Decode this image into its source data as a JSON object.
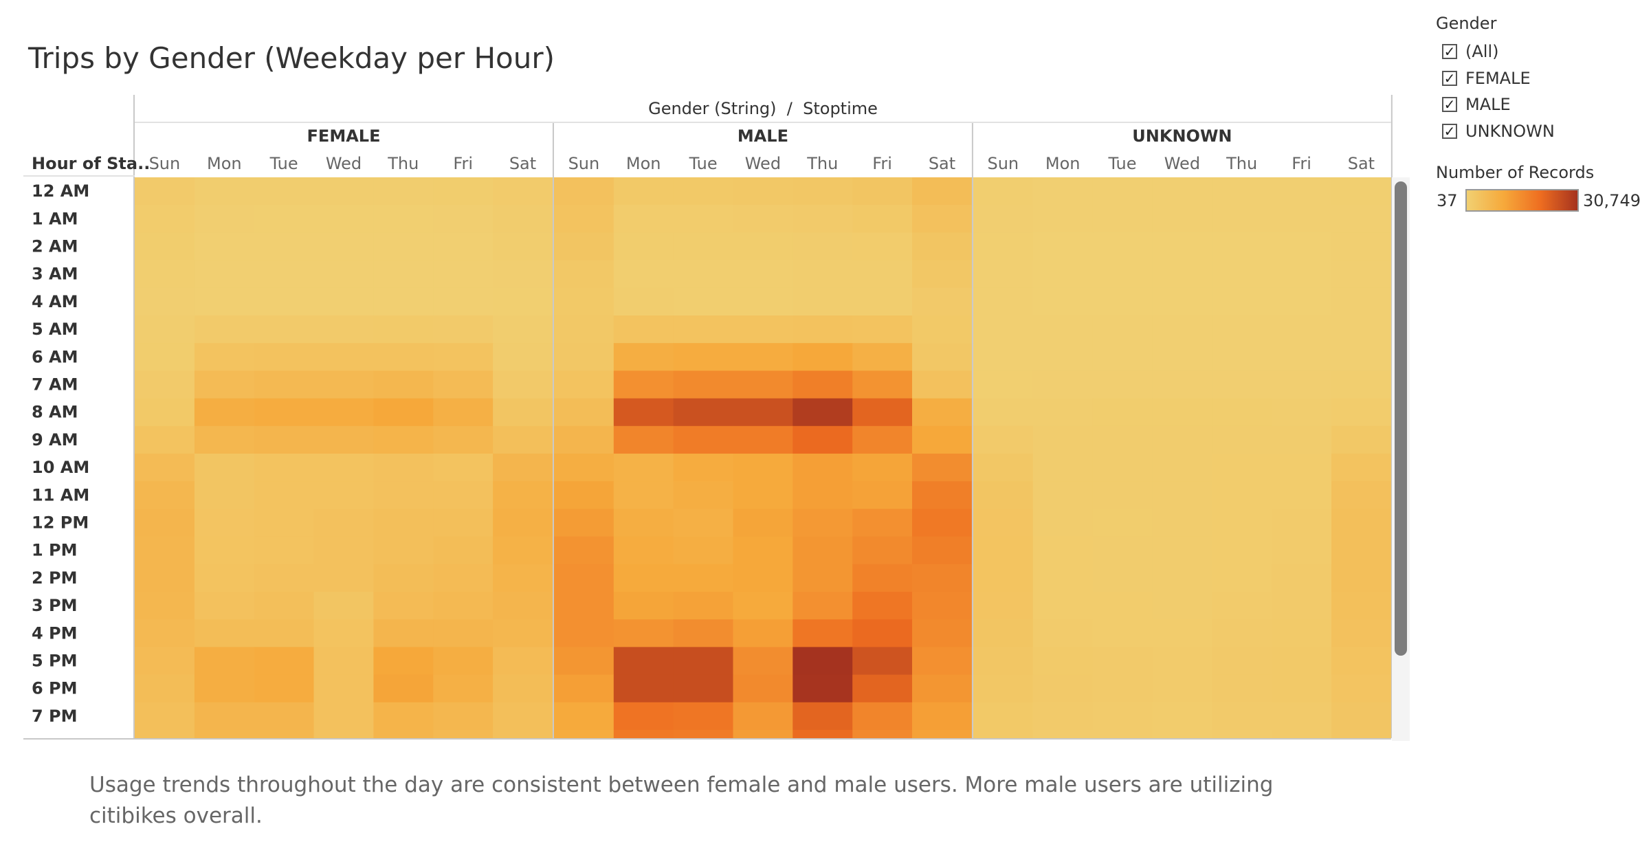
{
  "title": "Trips by Gender (Weekday per Hour)",
  "caption": "Usage trends throughout the day are consistent between female and male users. More male users are utilizing citibikes overall.",
  "legend": {
    "filter_title": "Gender",
    "filter_items": [
      "(All)",
      "FEMALE",
      "MALE",
      "UNKNOWN"
    ],
    "color_title": "Number of Records",
    "color_min": "37",
    "color_max": "30,749",
    "ramp_colors": [
      "#f1d072",
      "#f6a93b",
      "#ee6d20",
      "#a5331f"
    ]
  },
  "chart_data": {
    "type": "heatmap",
    "column_header_title": "Gender (String)  /  Stoptime",
    "row_header_title": "Hour of Sta..",
    "groups": [
      "FEMALE",
      "MALE",
      "UNKNOWN"
    ],
    "days": [
      "Sun",
      "Mon",
      "Tue",
      "Wed",
      "Thu",
      "Fri",
      "Sat"
    ],
    "hours": [
      "12 AM",
      "1 AM",
      "2 AM",
      "3 AM",
      "4 AM",
      "5 AM",
      "6 AM",
      "7 AM",
      "8 AM",
      "9 AM",
      "10 AM",
      "11 AM",
      "12 PM",
      "1 PM",
      "2 PM",
      "3 PM",
      "4 PM",
      "5 PM",
      "6 PM",
      "7 PM"
    ],
    "value_range": [
      37,
      30749
    ],
    "values": {
      "FEMALE": [
        [
          1500,
          800,
          700,
          700,
          800,
          900,
          1300
        ],
        [
          1100,
          500,
          400,
          400,
          400,
          500,
          1000
        ],
        [
          900,
          300,
          300,
          300,
          300,
          300,
          700
        ],
        [
          600,
          200,
          200,
          200,
          200,
          200,
          500
        ],
        [
          500,
          300,
          200,
          200,
          200,
          300,
          400
        ],
        [
          700,
          1500,
          1600,
          1600,
          1700,
          1500,
          700
        ],
        [
          900,
          3500,
          3800,
          3800,
          3800,
          3500,
          1000
        ],
        [
          1500,
          5500,
          6000,
          6000,
          6500,
          5500,
          1800
        ],
        [
          2000,
          9000,
          9500,
          9500,
          10500,
          8500,
          3000
        ],
        [
          3500,
          6500,
          7000,
          7000,
          7500,
          6500,
          4500
        ],
        [
          5500,
          3000,
          3500,
          3500,
          4000,
          3500,
          7000
        ],
        [
          6500,
          3000,
          3500,
          3500,
          4000,
          4000,
          8000
        ],
        [
          7000,
          3200,
          3500,
          4000,
          4500,
          4500,
          8500
        ],
        [
          6800,
          3300,
          3500,
          4000,
          4500,
          5000,
          8000
        ],
        [
          6800,
          3500,
          4000,
          4000,
          5000,
          5500,
          7500
        ],
        [
          6500,
          4000,
          4500,
          3000,
          5500,
          6000,
          7000
        ],
        [
          6000,
          5000,
          5000,
          3500,
          7000,
          7000,
          6500
        ],
        [
          5500,
          9000,
          9500,
          4000,
          10500,
          9000,
          5500
        ],
        [
          5000,
          9000,
          9500,
          4000,
          11000,
          8500,
          5000
        ],
        [
          4500,
          7000,
          7000,
          4000,
          7500,
          6500,
          4500
        ]
      ],
      "MALE": [
        [
          4000,
          2000,
          2000,
          2200,
          2500,
          3000,
          5000
        ],
        [
          3500,
          1200,
          1200,
          1300,
          1500,
          2000,
          4000
        ],
        [
          3000,
          900,
          900,
          900,
          1000,
          1200,
          3000
        ],
        [
          2200,
          600,
          600,
          600,
          700,
          800,
          2500
        ],
        [
          2000,
          700,
          600,
          600,
          700,
          800,
          1800
        ],
        [
          2200,
          3500,
          3500,
          3500,
          3800,
          3500,
          2000
        ],
        [
          2500,
          9000,
          9500,
          9500,
          10500,
          8500,
          2500
        ],
        [
          3500,
          14500,
          15500,
          15500,
          17500,
          14000,
          4000
        ],
        [
          5000,
          24000,
          25500,
          25500,
          29000,
          22000,
          9000
        ],
        [
          7000,
          16500,
          18000,
          18000,
          21000,
          16500,
          10500
        ],
        [
          9000,
          8000,
          9500,
          10000,
          12000,
          11000,
          15000
        ],
        [
          11000,
          8000,
          9000,
          10000,
          12000,
          11500,
          17500
        ],
        [
          12500,
          9000,
          8500,
          11000,
          13000,
          14500,
          18500
        ],
        [
          14000,
          9500,
          9000,
          10500,
          13500,
          15500,
          17500
        ],
        [
          14500,
          10000,
          10000,
          10500,
          13500,
          17000,
          16500
        ],
        [
          14500,
          11000,
          11500,
          10000,
          14500,
          19000,
          16000
        ],
        [
          14500,
          14000,
          15000,
          12000,
          19000,
          21000,
          15500
        ],
        [
          13500,
          26000,
          26000,
          15000,
          30749,
          25000,
          14500
        ],
        [
          12000,
          26000,
          26000,
          15500,
          30500,
          22000,
          13500
        ],
        [
          10000,
          19500,
          19000,
          13000,
          22000,
          16500,
          12000
        ]
      ],
      "UNKNOWN": [
        [
          600,
          300,
          300,
          300,
          300,
          300,
          400
        ],
        [
          500,
          200,
          200,
          200,
          200,
          200,
          300
        ],
        [
          400,
          100,
          100,
          100,
          100,
          100,
          300
        ],
        [
          300,
          100,
          100,
          37,
          100,
          100,
          200
        ],
        [
          200,
          100,
          100,
          37,
          100,
          100,
          200
        ],
        [
          200,
          200,
          200,
          200,
          200,
          200,
          200
        ],
        [
          300,
          300,
          300,
          300,
          300,
          300,
          300
        ],
        [
          400,
          500,
          500,
          500,
          500,
          500,
          600
        ],
        [
          800,
          800,
          900,
          900,
          900,
          800,
          1200
        ],
        [
          1500,
          1000,
          1000,
          1000,
          1000,
          1000,
          2200
        ],
        [
          2500,
          1000,
          1000,
          1000,
          1100,
          1200,
          3500
        ],
        [
          3000,
          1000,
          1000,
          1000,
          1100,
          1200,
          4200
        ],
        [
          3200,
          1000,
          900,
          1000,
          1100,
          1300,
          4500
        ],
        [
          3300,
          1100,
          1000,
          1000,
          1200,
          1400,
          4500
        ],
        [
          3300,
          1100,
          1000,
          1000,
          1200,
          1500,
          4500
        ],
        [
          3200,
          1200,
          1100,
          1000,
          1300,
          1500,
          4300
        ],
        [
          3000,
          1300,
          1200,
          1100,
          1500,
          1700,
          4000
        ],
        [
          2700,
          1700,
          1600,
          1300,
          1800,
          1900,
          3500
        ],
        [
          2400,
          1800,
          1600,
          1300,
          1800,
          1900,
          3200
        ],
        [
          2000,
          1500,
          1400,
          1200,
          1500,
          1600,
          2800
        ]
      ]
    }
  }
}
